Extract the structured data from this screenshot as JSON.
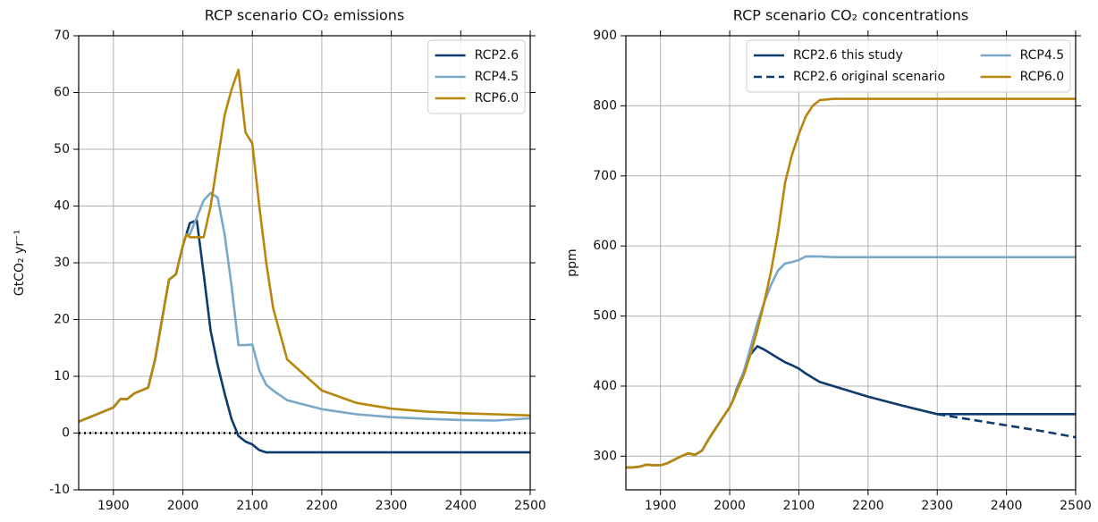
{
  "chart_data": [
    {
      "type": "line",
      "title": "RCP scenario CO₂ emissions",
      "ylabel": "GtCO₂ yr⁻¹",
      "x": [
        1850,
        1860,
        1870,
        1880,
        1890,
        1900,
        1910,
        1920,
        1930,
        1940,
        1950,
        1960,
        1970,
        1980,
        1990,
        2000,
        2005,
        2010,
        2020,
        2030,
        2040,
        2050,
        2060,
        2070,
        2080,
        2090,
        2100,
        2110,
        2120,
        2130,
        2150,
        2200,
        2250,
        2300,
        2350,
        2400,
        2450,
        2500
      ],
      "series": [
        {
          "name": "RCP2.6",
          "color": "#0d3b6e",
          "linestyle": "solid",
          "values": [
            2,
            2.5,
            3,
            3.5,
            4,
            4.5,
            6,
            6,
            7,
            7.5,
            8,
            13,
            20,
            27,
            28,
            33,
            35,
            37,
            37.5,
            28,
            18,
            12,
            7,
            2.5,
            -0.5,
            -1.5,
            -2,
            -3,
            -3.4,
            -3.4,
            -3.4,
            -3.4,
            -3.4,
            -3.4,
            -3.4,
            -3.4,
            -3.4,
            -3.4
          ]
        },
        {
          "name": "RCP4.5",
          "color": "#7aa8c8",
          "linestyle": "solid",
          "values": [
            2,
            2.5,
            3,
            3.5,
            4,
            4.5,
            6,
            6,
            7,
            7.5,
            8,
            13,
            20,
            27,
            28,
            33,
            35,
            35,
            38,
            41,
            42.3,
            41.5,
            35,
            26,
            15.5,
            15.5,
            15.6,
            11,
            8.5,
            7.5,
            5.8,
            4.2,
            3.3,
            2.8,
            2.5,
            2.3,
            2.2,
            2.6
          ]
        },
        {
          "name": "RCP6.0",
          "color": "#b8860b",
          "linestyle": "solid",
          "values": [
            2,
            2.5,
            3,
            3.5,
            4,
            4.5,
            6,
            6,
            7,
            7.5,
            8,
            13,
            20,
            27,
            28,
            33,
            35,
            34.5,
            34.5,
            34.5,
            40,
            48,
            56,
            60.5,
            64,
            53,
            51,
            40,
            30,
            22,
            13,
            7.5,
            5.3,
            4.3,
            3.8,
            3.5,
            3.3,
            3.1
          ]
        }
      ],
      "hline": 0,
      "hline_style": "dotted",
      "xlim": [
        1850,
        2500
      ],
      "xticks": [
        1900,
        2000,
        2100,
        2200,
        2300,
        2400,
        2500
      ],
      "ylim": [
        -10,
        70
      ],
      "yticks": [
        -10,
        0,
        10,
        20,
        30,
        40,
        50,
        60,
        70
      ],
      "grid": true,
      "legend": "upper right",
      "legend_columns": 1
    },
    {
      "type": "line",
      "title": "RCP scenario CO₂ concentrations",
      "ylabel": "ppm",
      "x": [
        1850,
        1860,
        1870,
        1880,
        1890,
        1900,
        1910,
        1920,
        1930,
        1940,
        1950,
        1960,
        1970,
        1980,
        1990,
        2000,
        2005,
        2010,
        2020,
        2030,
        2040,
        2050,
        2060,
        2070,
        2080,
        2090,
        2100,
        2110,
        2120,
        2130,
        2150,
        2200,
        2250,
        2300,
        2350,
        2400,
        2450,
        2500
      ],
      "series": [
        {
          "name": "RCP2.6 this study",
          "color": "#0d3b6e",
          "linestyle": "solid",
          "values": [
            284,
            284,
            285,
            288,
            287,
            287,
            290,
            295,
            300,
            304,
            302,
            308,
            325,
            340,
            355,
            370,
            380,
            395,
            420,
            445,
            457,
            452,
            446,
            440,
            434,
            430,
            425,
            418,
            412,
            406,
            400,
            385,
            372,
            360,
            360,
            360,
            360,
            360
          ]
        },
        {
          "name": "RCP2.6 original scenario",
          "color": "#0d3b6e",
          "linestyle": "dashed",
          "values": [
            null,
            null,
            null,
            null,
            null,
            null,
            null,
            null,
            null,
            null,
            null,
            null,
            null,
            null,
            null,
            null,
            null,
            null,
            null,
            null,
            null,
            null,
            null,
            null,
            null,
            null,
            null,
            null,
            null,
            null,
            null,
            null,
            null,
            360,
            352,
            344,
            336,
            327
          ]
        },
        {
          "name": "RCP4.5",
          "color": "#7aa8c8",
          "linestyle": "solid",
          "values": [
            284,
            284,
            285,
            288,
            287,
            287,
            290,
            295,
            300,
            304,
            302,
            308,
            325,
            340,
            355,
            370,
            380,
            393,
            420,
            455,
            490,
            520,
            545,
            565,
            575,
            577,
            580,
            585,
            585,
            585,
            584,
            584,
            584,
            584,
            584,
            584,
            584,
            584
          ]
        },
        {
          "name": "RCP6.0",
          "color": "#b8860b",
          "linestyle": "solid",
          "values": [
            284,
            284,
            285,
            288,
            287,
            287,
            290,
            295,
            300,
            304,
            302,
            308,
            325,
            340,
            355,
            370,
            380,
            392,
            415,
            445,
            480,
            520,
            565,
            620,
            690,
            730,
            760,
            785,
            800,
            808,
            810,
            810,
            810,
            810,
            810,
            810,
            810,
            810
          ]
        }
      ],
      "xlim": [
        1850,
        2500
      ],
      "xticks": [
        1900,
        2000,
        2100,
        2200,
        2300,
        2400,
        2500
      ],
      "ylim": [
        252,
        900
      ],
      "yticks": [
        300,
        400,
        500,
        600,
        700,
        800,
        900
      ],
      "grid": true,
      "legend": "upper right",
      "legend_columns": 2
    }
  ]
}
